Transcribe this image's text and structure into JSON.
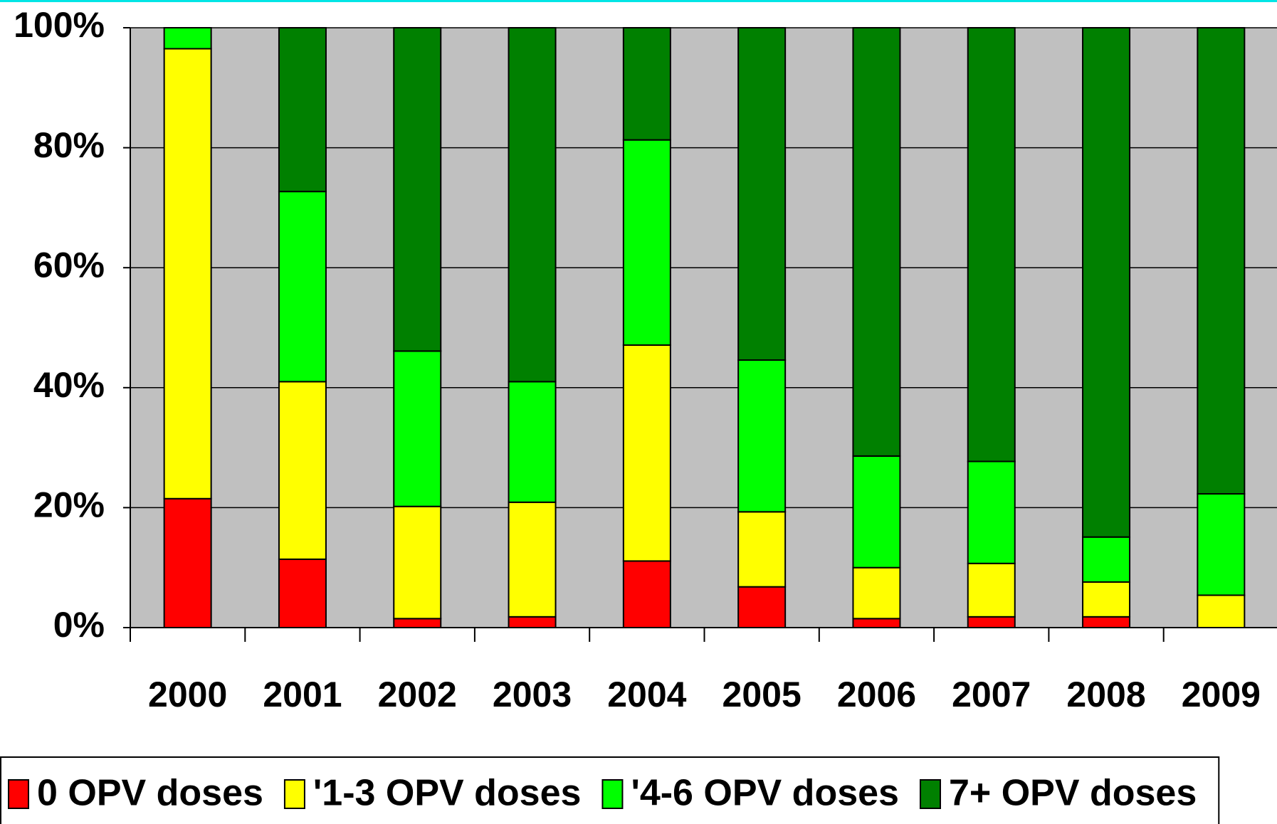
{
  "chart_data": {
    "type": "stacked_bar_100",
    "categories": [
      "2000",
      "2001",
      "2002",
      "2003",
      "2004",
      "2005",
      "2006",
      "2007",
      "2008",
      "2009"
    ],
    "series": [
      {
        "name": "0 OPV doses",
        "color": "#ff0000",
        "values": [
          21.5,
          11.4,
          1.5,
          1.8,
          11.1,
          6.8,
          1.5,
          1.8,
          1.8,
          0
        ]
      },
      {
        "name": "'1-3 OPV doses",
        "color": "#ffff00",
        "values": [
          75,
          29.6,
          18.7,
          19.1,
          36,
          12.5,
          8.5,
          8.9,
          5.8,
          5.4
        ]
      },
      {
        "name": "'4-6 OPV doses",
        "color": "#00ff00",
        "values": [
          3.5,
          31.7,
          25.9,
          20.1,
          34.2,
          25.3,
          18.6,
          17,
          7.5,
          16.9
        ]
      },
      {
        "name": "7+ OPV doses",
        "color": "#008000",
        "values": [
          0,
          27.3,
          53.9,
          59,
          18.7,
          55.4,
          71.4,
          72.3,
          84.9,
          77.7
        ]
      }
    ],
    "ylim": [
      0,
      100
    ],
    "yticks": [
      {
        "value": 0,
        "label": "0%"
      },
      {
        "value": 20,
        "label": "20%"
      },
      {
        "value": 40,
        "label": "40%"
      },
      {
        "value": 60,
        "label": "60%"
      },
      {
        "value": 80,
        "label": "80%"
      },
      {
        "value": 100,
        "label": "100%"
      }
    ],
    "grid": true,
    "plot_background": "#c0c0c0",
    "legend": "bottom"
  }
}
